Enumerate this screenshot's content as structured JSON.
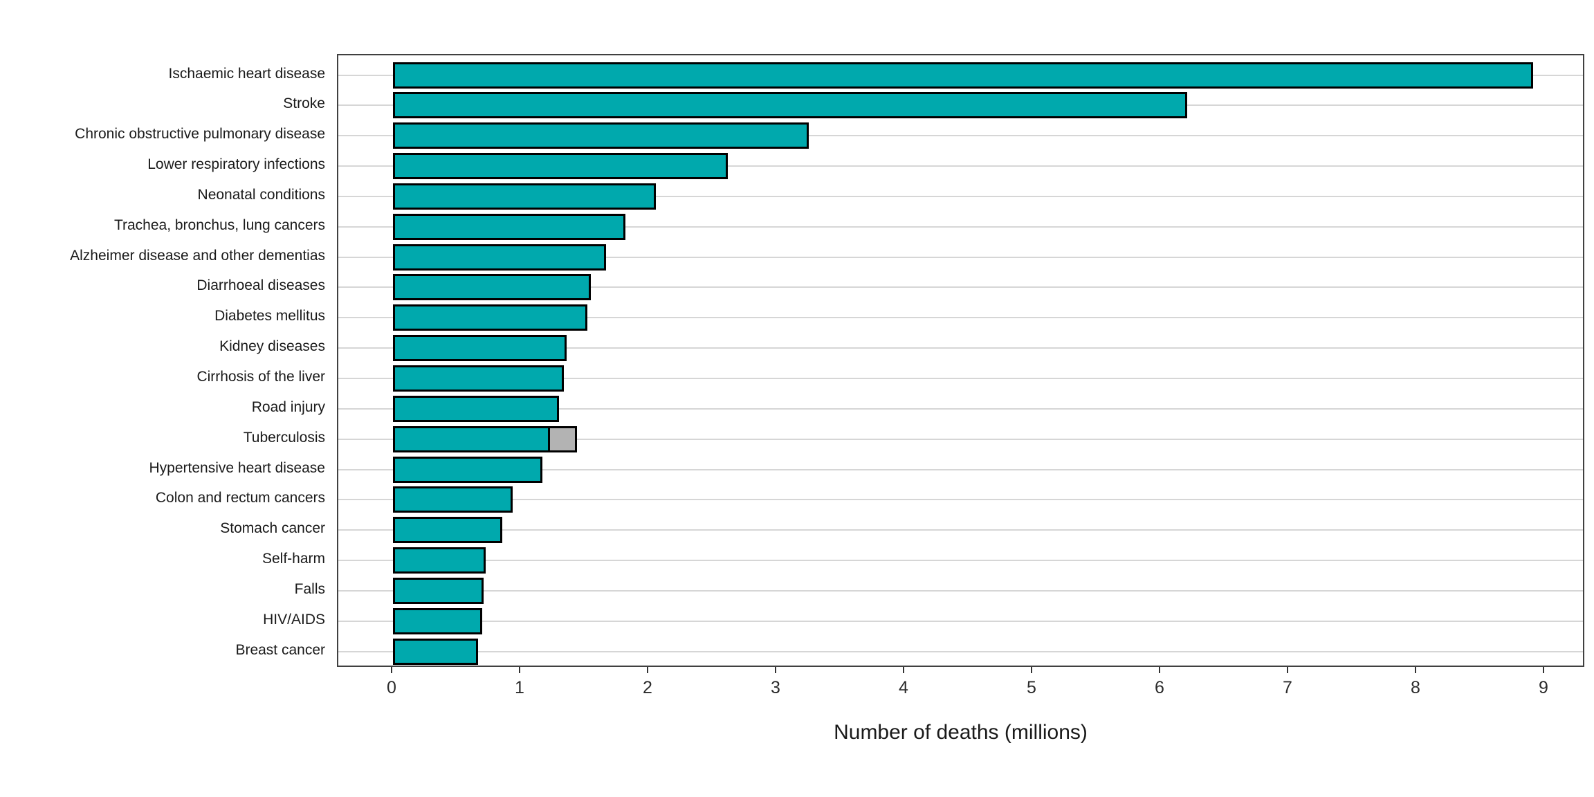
{
  "chart_data": {
    "type": "bar",
    "orientation": "horizontal",
    "title": "",
    "xlabel": "Number of deaths (millions)",
    "ylabel": "",
    "xlim": [
      0,
      9.3
    ],
    "xticks": [
      0,
      1,
      2,
      3,
      4,
      5,
      6,
      7,
      8,
      9
    ],
    "xtick_labels": [
      "0",
      "1",
      "2",
      "3",
      "4",
      "5",
      "6",
      "7",
      "8",
      "9"
    ],
    "grid": "horizontal-only",
    "legend": "none",
    "panel_background": "#ffffff",
    "gridline_color": "#d6d6d6",
    "panel_border_color": "#404040",
    "bar_color": "#00a9ad",
    "bar_border_color": "#000000",
    "secondary_color": "#b3b3b3",
    "categories": [
      "Ischaemic heart disease",
      "Stroke",
      "Chronic obstructive pulmonary disease",
      "Lower respiratory infections",
      "Neonatal conditions",
      "Trachea, bronchus, lung cancers",
      "Alzheimer disease and other dementias",
      "Diarrhoeal diseases",
      "Diabetes mellitus",
      "Kidney diseases",
      "Cirrhosis of the liver",
      "Road injury",
      "Tuberculosis",
      "Hypertensive heart disease",
      "Colon and rectum cancers",
      "Stomach cancer",
      "Self-harm",
      "Falls",
      "HIV/AIDS",
      "Breast cancer"
    ],
    "values": [
      8.89,
      6.19,
      3.23,
      2.6,
      2.04,
      1.8,
      1.65,
      1.53,
      1.5,
      1.34,
      1.32,
      1.28,
      1.21,
      1.15,
      0.92,
      0.84,
      0.71,
      0.69,
      0.68,
      0.65
    ],
    "secondary_segments": [
      {
        "category": "Tuberculosis",
        "start": 1.21,
        "end": 1.42,
        "color": "#b3b3b3"
      }
    ]
  }
}
